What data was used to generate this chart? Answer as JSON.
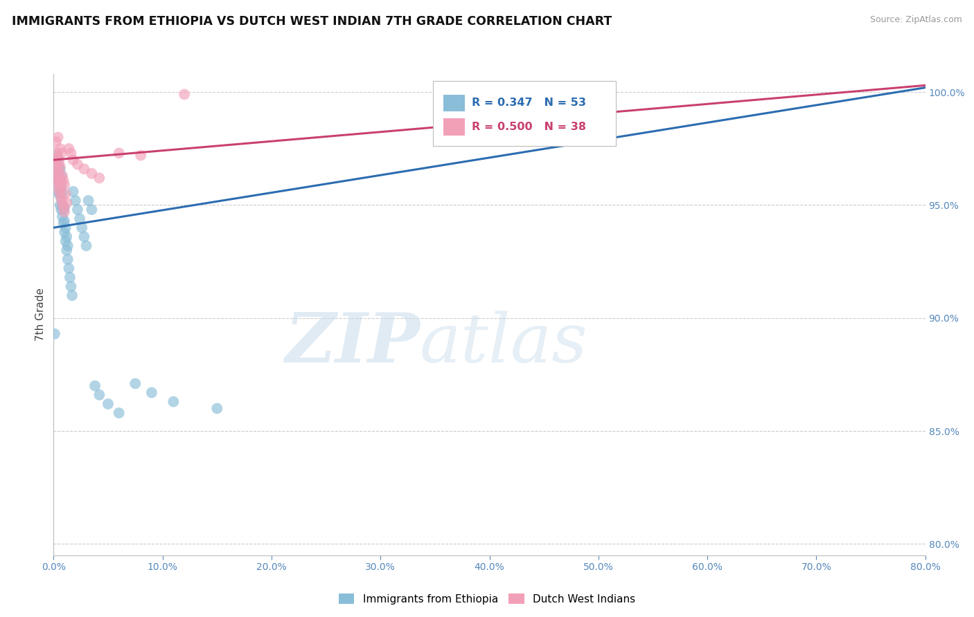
{
  "title": "IMMIGRANTS FROM ETHIOPIA VS DUTCH WEST INDIAN 7TH GRADE CORRELATION CHART",
  "source": "Source: ZipAtlas.com",
  "ylabel": "7th Grade",
  "ylabel_right_ticks": [
    "80.0%",
    "85.0%",
    "90.0%",
    "95.0%",
    "100.0%"
  ],
  "ylabel_right_values": [
    0.8,
    0.85,
    0.9,
    0.95,
    1.0
  ],
  "xmin": 0.0,
  "xmax": 0.8,
  "ymin": 0.795,
  "ymax": 1.008,
  "legend_r_blue": "R = 0.347",
  "legend_n_blue": "N = 53",
  "legend_r_pink": "R = 0.500",
  "legend_n_pink": "N = 38",
  "legend_label_blue": "Immigrants from Ethiopia",
  "legend_label_pink": "Dutch West Indians",
  "blue_color": "#89bdd8",
  "pink_color": "#f2a0b8",
  "blue_line_color": "#2b6cb0",
  "pink_line_color": "#c94070",
  "watermark_zip": "ZIP",
  "watermark_atlas": "atlas",
  "blue_line_x0": 0.0,
  "blue_line_y0": 0.94,
  "blue_line_x1": 0.8,
  "blue_line_y1": 1.002,
  "pink_line_x0": 0.0,
  "pink_line_y0": 0.97,
  "pink_line_x1": 0.8,
  "pink_line_y1": 1.003,
  "blue_x": [
    0.001,
    0.002,
    0.003,
    0.003,
    0.004,
    0.004,
    0.004,
    0.005,
    0.005,
    0.005,
    0.006,
    0.006,
    0.006,
    0.006,
    0.007,
    0.007,
    0.007,
    0.007,
    0.008,
    0.008,
    0.008,
    0.009,
    0.009,
    0.01,
    0.01,
    0.01,
    0.011,
    0.011,
    0.012,
    0.012,
    0.013,
    0.013,
    0.014,
    0.015,
    0.016,
    0.017,
    0.018,
    0.02,
    0.022,
    0.024,
    0.026,
    0.028,
    0.03,
    0.032,
    0.035,
    0.038,
    0.042,
    0.05,
    0.06,
    0.075,
    0.09,
    0.11,
    0.15
  ],
  "blue_y": [
    0.893,
    0.962,
    0.963,
    0.972,
    0.958,
    0.963,
    0.97,
    0.955,
    0.961,
    0.966,
    0.95,
    0.955,
    0.96,
    0.966,
    0.948,
    0.953,
    0.958,
    0.963,
    0.945,
    0.95,
    0.955,
    0.942,
    0.948,
    0.938,
    0.943,
    0.949,
    0.934,
    0.94,
    0.93,
    0.936,
    0.926,
    0.932,
    0.922,
    0.918,
    0.914,
    0.91,
    0.956,
    0.952,
    0.948,
    0.944,
    0.94,
    0.936,
    0.932,
    0.952,
    0.948,
    0.87,
    0.866,
    0.862,
    0.858,
    0.871,
    0.867,
    0.863,
    0.86
  ],
  "pink_x": [
    0.001,
    0.002,
    0.002,
    0.003,
    0.003,
    0.003,
    0.004,
    0.004,
    0.004,
    0.004,
    0.005,
    0.005,
    0.005,
    0.006,
    0.006,
    0.006,
    0.006,
    0.007,
    0.007,
    0.007,
    0.008,
    0.008,
    0.009,
    0.009,
    0.01,
    0.01,
    0.011,
    0.012,
    0.014,
    0.016,
    0.018,
    0.022,
    0.028,
    0.035,
    0.042,
    0.06,
    0.08,
    0.12
  ],
  "pink_y": [
    0.963,
    0.97,
    0.978,
    0.961,
    0.967,
    0.973,
    0.959,
    0.965,
    0.971,
    0.98,
    0.957,
    0.963,
    0.969,
    0.955,
    0.961,
    0.967,
    0.975,
    0.953,
    0.959,
    0.973,
    0.951,
    0.963,
    0.949,
    0.961,
    0.947,
    0.959,
    0.955,
    0.951,
    0.975,
    0.973,
    0.97,
    0.968,
    0.966,
    0.964,
    0.962,
    0.973,
    0.972,
    0.999
  ]
}
